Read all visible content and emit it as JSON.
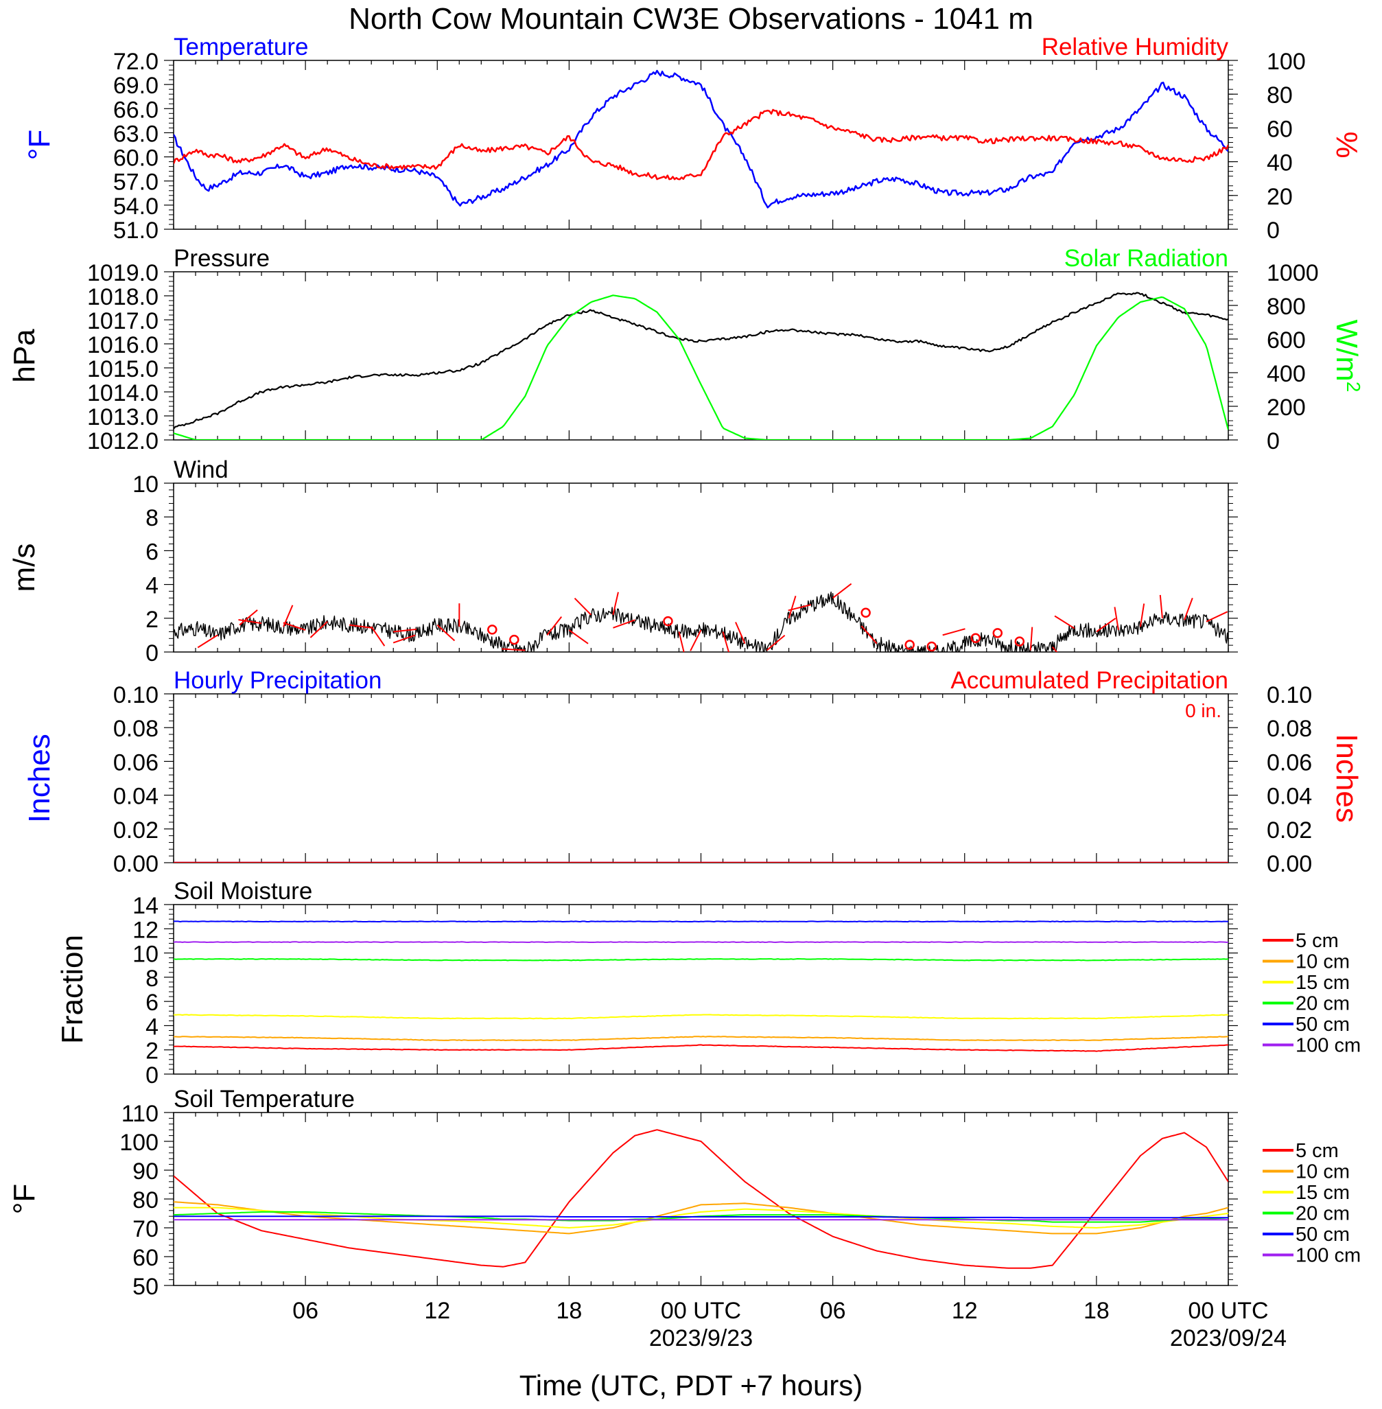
{
  "title": "North Cow Mountain CW3E Observations - 1041 m",
  "xlabel": "Time (UTC, PDT +7 hours)",
  "x_ticks": [
    {
      "h": 6,
      "label": "06"
    },
    {
      "h": 12,
      "label": "12"
    },
    {
      "h": 18,
      "label": "18"
    },
    {
      "h": 24,
      "label": "00 UTC",
      "date": "2023/9/23"
    },
    {
      "h": 30,
      "label": "06"
    },
    {
      "h": 36,
      "label": "12"
    },
    {
      "h": 42,
      "label": "18"
    },
    {
      "h": 48,
      "label": "00 UTC",
      "date": "2023/09/24"
    }
  ],
  "colors": {
    "temperature": "#0000ff",
    "humidity": "#ff0000",
    "pressure": "#000000",
    "solar": "#00ff00",
    "wind": "#000000",
    "barb": "#ff0000",
    "hourly_precip": "#0000ff",
    "accum_precip": "#ff0000"
  },
  "soil_depths": [
    {
      "label": "5 cm",
      "color": "#ff0000"
    },
    {
      "label": "10 cm",
      "color": "#ffa500"
    },
    {
      "label": "15 cm",
      "color": "#ffff00"
    },
    {
      "label": "20 cm",
      "color": "#00ff00"
    },
    {
      "label": "50 cm",
      "color": "#0000ff"
    },
    {
      "label": "100 cm",
      "color": "#a020f0"
    }
  ],
  "chart_data": [
    {
      "type": "line",
      "title_left": "Temperature",
      "title_right": "Relative Humidity",
      "ylabel_left": "°F",
      "ylabel_right": "%",
      "ylim_left": [
        51,
        72
      ],
      "ylim_right": [
        0,
        100
      ],
      "yticks_left": [
        "51.0",
        "54.0",
        "57.0",
        "60.0",
        "63.0",
        "66.0",
        "69.0",
        "72.0"
      ],
      "yticks_right": [
        "0",
        "20",
        "40",
        "60",
        "80",
        "100"
      ],
      "x_hours": [
        0,
        1,
        1.5,
        2,
        3,
        4,
        5,
        6,
        7,
        8,
        9,
        10,
        11,
        12,
        13,
        14,
        15,
        16,
        17,
        18,
        19,
        20,
        21,
        22,
        23,
        24,
        25,
        26,
        27,
        28,
        29,
        30,
        31,
        32,
        33,
        34,
        35,
        36,
        37,
        38,
        39,
        40,
        41,
        42,
        43,
        44,
        45,
        46,
        47,
        48
      ],
      "series": [
        {
          "name": "Temperature",
          "axis": "left",
          "values": [
            62.5,
            57.5,
            56.0,
            56.5,
            58.0,
            58.0,
            59.0,
            57.5,
            58.0,
            59.0,
            58.7,
            58.5,
            58.3,
            57.5,
            54.0,
            55.0,
            56.0,
            57.5,
            59.0,
            61.0,
            65.0,
            67.5,
            69.0,
            70.5,
            70.0,
            69.0,
            64.0,
            60.0,
            54.0,
            55.0,
            55.3,
            55.5,
            56.0,
            57.0,
            57.3,
            56.5,
            55.5,
            55.5,
            55.5,
            56.0,
            57.5,
            58.0,
            62.0,
            62.5,
            63.5,
            66.0,
            69.0,
            67.5,
            63.5,
            61.0
          ]
        },
        {
          "name": "Relative Humidity",
          "axis": "right",
          "values": [
            40,
            47,
            44,
            44,
            40,
            43,
            50,
            42,
            48,
            42,
            38,
            37,
            37,
            37,
            50,
            46,
            48,
            49,
            45,
            55,
            40,
            38,
            33,
            31,
            30,
            33,
            55,
            62,
            70,
            68,
            65,
            60,
            57,
            53,
            53,
            55,
            54,
            54,
            52,
            53,
            54,
            54,
            53,
            52,
            51,
            48,
            42,
            41,
            42,
            49
          ]
        }
      ]
    },
    {
      "type": "line",
      "title_left": "Pressure",
      "title_right": "Solar Radiation",
      "ylabel_left": "hPa",
      "ylabel_right": "W/m",
      "ylabel_right_sup": "2",
      "ylim_left": [
        1012,
        1019
      ],
      "ylim_right": [
        0,
        1000
      ],
      "yticks_left": [
        "1012.0",
        "1013.0",
        "1014.0",
        "1015.0",
        "1016.0",
        "1017.0",
        "1018.0",
        "1019.0"
      ],
      "yticks_right": [
        "0",
        "200",
        "400",
        "600",
        "800",
        "1000"
      ],
      "x_hours": [
        0,
        1,
        2,
        3,
        4,
        5,
        6,
        7,
        8,
        9,
        10,
        11,
        12,
        13,
        14,
        15,
        16,
        17,
        18,
        19,
        20,
        21,
        22,
        23,
        24,
        25,
        26,
        27,
        28,
        29,
        30,
        31,
        32,
        33,
        34,
        35,
        36,
        37,
        38,
        39,
        40,
        41,
        42,
        43,
        44,
        45,
        46,
        47,
        48
      ],
      "series": [
        {
          "name": "Pressure",
          "axis": "left",
          "values": [
            1012.5,
            1012.8,
            1013.1,
            1013.6,
            1014.0,
            1014.2,
            1014.3,
            1014.4,
            1014.6,
            1014.7,
            1014.7,
            1014.7,
            1014.8,
            1014.9,
            1015.2,
            1015.7,
            1016.2,
            1016.8,
            1017.2,
            1017.4,
            1017.1,
            1016.8,
            1016.5,
            1016.2,
            1016.1,
            1016.2,
            1016.3,
            1016.5,
            1016.6,
            1016.5,
            1016.4,
            1016.4,
            1016.2,
            1016.1,
            1016.1,
            1015.9,
            1015.8,
            1015.7,
            1015.9,
            1016.4,
            1016.9,
            1017.3,
            1017.7,
            1018.1,
            1018.1,
            1017.7,
            1017.3,
            1017.2,
            1017.0
          ]
        },
        {
          "name": "Solar Radiation",
          "axis": "right",
          "values": [
            40,
            0,
            0,
            0,
            0,
            0,
            0,
            0,
            0,
            0,
            0,
            0,
            0,
            0,
            0,
            80,
            260,
            560,
            730,
            820,
            860,
            840,
            760,
            600,
            330,
            70,
            10,
            0,
            0,
            0,
            0,
            0,
            0,
            0,
            0,
            0,
            0,
            0,
            0,
            10,
            80,
            270,
            560,
            730,
            820,
            850,
            780,
            560,
            60
          ]
        }
      ]
    },
    {
      "type": "line",
      "title_left": "Wind",
      "ylabel_left": "m/s",
      "ylim_left": [
        0,
        10
      ],
      "yticks_left": [
        "0",
        "2",
        "4",
        "6",
        "8",
        "10"
      ],
      "x_hours": [
        0,
        1,
        2,
        3,
        4,
        5,
        6,
        7,
        8,
        9,
        10,
        11,
        12,
        13,
        14,
        15,
        16,
        17,
        18,
        19,
        20,
        21,
        22,
        23,
        24,
        25,
        26,
        27,
        28,
        29,
        30,
        31,
        32,
        33,
        34,
        35,
        36,
        37,
        38,
        39,
        40,
        41,
        42,
        43,
        44,
        45,
        46,
        47,
        48
      ],
      "series": [
        {
          "name": "Wind speed",
          "axis": "left",
          "values": [
            1.2,
            1.4,
            1.0,
            1.6,
            1.7,
            1.5,
            1.3,
            1.8,
            1.6,
            1.5,
            1.2,
            1.0,
            1.6,
            1.5,
            1.0,
            0.4,
            0.1,
            1.0,
            1.3,
            2.2,
            2.2,
            1.9,
            1.5,
            1.2,
            1.3,
            1.2,
            0.5,
            0.1,
            2.0,
            2.8,
            3.2,
            2.0,
            0.5,
            0.1,
            0.0,
            0.0,
            0.5,
            0.8,
            0.3,
            0.1,
            0.3,
            1.4,
            1.2,
            1.3,
            1.5,
            2.0,
            1.9,
            1.8,
            0.8
          ]
        }
      ],
      "barb_hours": [
        2,
        3,
        4,
        5,
        6,
        7,
        8,
        9,
        10,
        11,
        12,
        13,
        14,
        15,
        16,
        17,
        18,
        19,
        20,
        21,
        22,
        23,
        24,
        25,
        26,
        27,
        28,
        29,
        30,
        31,
        32,
        33,
        34,
        35,
        36,
        37,
        38,
        39,
        40,
        41,
        42,
        43,
        44,
        45,
        46,
        47
      ],
      "calm_hours": [
        14,
        15,
        22,
        31,
        33,
        34,
        36,
        37,
        38
      ]
    },
    {
      "type": "line",
      "title_left": "Hourly Precipitation",
      "title_right": "Accumulated Precipitation",
      "annotation": "0 in.",
      "ylabel_left": "Inches",
      "ylabel_right": "Inches",
      "ylim_left": [
        0,
        0.1
      ],
      "ylim_right": [
        0,
        0.1
      ],
      "yticks_left": [
        "0.00",
        "0.02",
        "0.04",
        "0.06",
        "0.08",
        "0.10"
      ],
      "yticks_right": [
        "0.00",
        "0.02",
        "0.04",
        "0.06",
        "0.08",
        "0.10"
      ],
      "x_hours": [
        0,
        48
      ],
      "series": [
        {
          "name": "Hourly Precipitation",
          "axis": "left",
          "values": [
            0,
            0
          ]
        },
        {
          "name": "Accumulated Precipitation",
          "axis": "right",
          "values": [
            0,
            0
          ]
        }
      ]
    },
    {
      "type": "line",
      "title_left": "Soil Moisture",
      "ylabel_left": "Fraction",
      "ylim_left": [
        0,
        14
      ],
      "yticks_left": [
        "0",
        "2",
        "4",
        "6",
        "8",
        "10",
        "12",
        "14"
      ],
      "x_hours": [
        0,
        6,
        12,
        18,
        24,
        30,
        36,
        42,
        48
      ],
      "series": [
        {
          "name": "5 cm",
          "values": [
            2.3,
            2.1,
            2.0,
            2.0,
            2.4,
            2.2,
            2.0,
            1.9,
            2.4
          ]
        },
        {
          "name": "10 cm",
          "values": [
            3.1,
            3.0,
            2.8,
            2.8,
            3.1,
            3.0,
            2.8,
            2.8,
            3.1
          ]
        },
        {
          "name": "15 cm",
          "values": [
            4.9,
            4.8,
            4.6,
            4.6,
            4.9,
            4.8,
            4.6,
            4.6,
            4.9
          ]
        },
        {
          "name": "20 cm",
          "values": [
            9.5,
            9.5,
            9.4,
            9.4,
            9.5,
            9.5,
            9.4,
            9.4,
            9.5
          ]
        },
        {
          "name": "50 cm",
          "values": [
            12.6,
            12.6,
            12.6,
            12.6,
            12.6,
            12.6,
            12.6,
            12.6,
            12.6
          ]
        },
        {
          "name": "100 cm",
          "values": [
            10.9,
            10.9,
            10.9,
            10.9,
            10.9,
            10.9,
            10.9,
            10.9,
            10.9
          ]
        }
      ]
    },
    {
      "type": "line",
      "title_left": "Soil Temperature",
      "ylabel_left": "°F",
      "ylim_left": [
        50,
        110
      ],
      "yticks_left": [
        "50",
        "60",
        "70",
        "80",
        "90",
        "100",
        "110"
      ],
      "x_hours": [
        0,
        2,
        4,
        6,
        8,
        10,
        12,
        14,
        15,
        16,
        18,
        20,
        21,
        22,
        23,
        24,
        26,
        28,
        30,
        32,
        34,
        36,
        38,
        39,
        40,
        42,
        44,
        45,
        46,
        47,
        48
      ],
      "series": [
        {
          "name": "5 cm",
          "values": [
            88,
            75,
            69,
            66,
            63,
            61,
            59,
            57,
            56.5,
            58,
            79,
            96,
            102,
            104,
            102,
            100,
            86,
            75,
            67,
            62,
            59,
            57,
            56,
            56,
            57,
            76,
            95,
            101,
            103,
            98,
            86
          ]
        },
        {
          "name": "10 cm",
          "values": [
            79,
            78,
            76,
            74,
            73,
            72,
            71,
            70,
            69.5,
            69,
            68,
            70,
            72,
            74,
            76,
            78,
            78.5,
            77,
            75,
            73,
            71,
            70,
            69,
            68.5,
            68,
            68,
            70,
            72,
            74,
            75,
            77
          ]
        },
        {
          "name": "15 cm",
          "values": [
            77,
            77,
            76,
            75,
            74,
            73,
            72.5,
            72,
            71.5,
            71,
            70,
            71,
            72,
            73,
            74.5,
            75.5,
            76.5,
            76,
            75,
            74,
            73,
            72,
            71.5,
            71,
            70.5,
            70,
            71,
            72,
            73,
            74,
            75
          ]
        },
        {
          "name": "20 cm",
          "values": [
            74.5,
            75,
            75.5,
            75.5,
            75,
            74.5,
            74,
            73.5,
            73,
            73,
            72.5,
            72.5,
            73,
            73,
            73.5,
            74,
            74.5,
            74.5,
            74.5,
            74,
            73.5,
            73,
            72.5,
            72.5,
            72,
            72,
            72,
            72.5,
            73,
            73,
            73.5
          ]
        },
        {
          "name": "50 cm",
          "values": [
            74,
            74,
            74,
            74,
            74,
            74,
            74,
            74,
            74,
            74,
            73.8,
            73.8,
            73.8,
            73.8,
            73.8,
            73.8,
            73.8,
            73.8,
            73.8,
            73.8,
            73.6,
            73.6,
            73.6,
            73.5,
            73.5,
            73.5,
            73.5,
            73.5,
            73.5,
            73.5,
            73.5
          ]
        },
        {
          "name": "100 cm",
          "values": [
            72.8,
            72.8,
            72.8,
            72.8,
            72.8,
            72.8,
            72.8,
            72.8,
            72.8,
            72.8,
            72.8,
            72.8,
            72.8,
            72.8,
            72.8,
            72.8,
            72.8,
            72.8,
            72.8,
            72.8,
            72.8,
            72.8,
            72.8,
            72.8,
            72.8,
            72.8,
            72.8,
            72.8,
            72.8,
            72.8,
            72.8
          ]
        }
      ]
    }
  ]
}
